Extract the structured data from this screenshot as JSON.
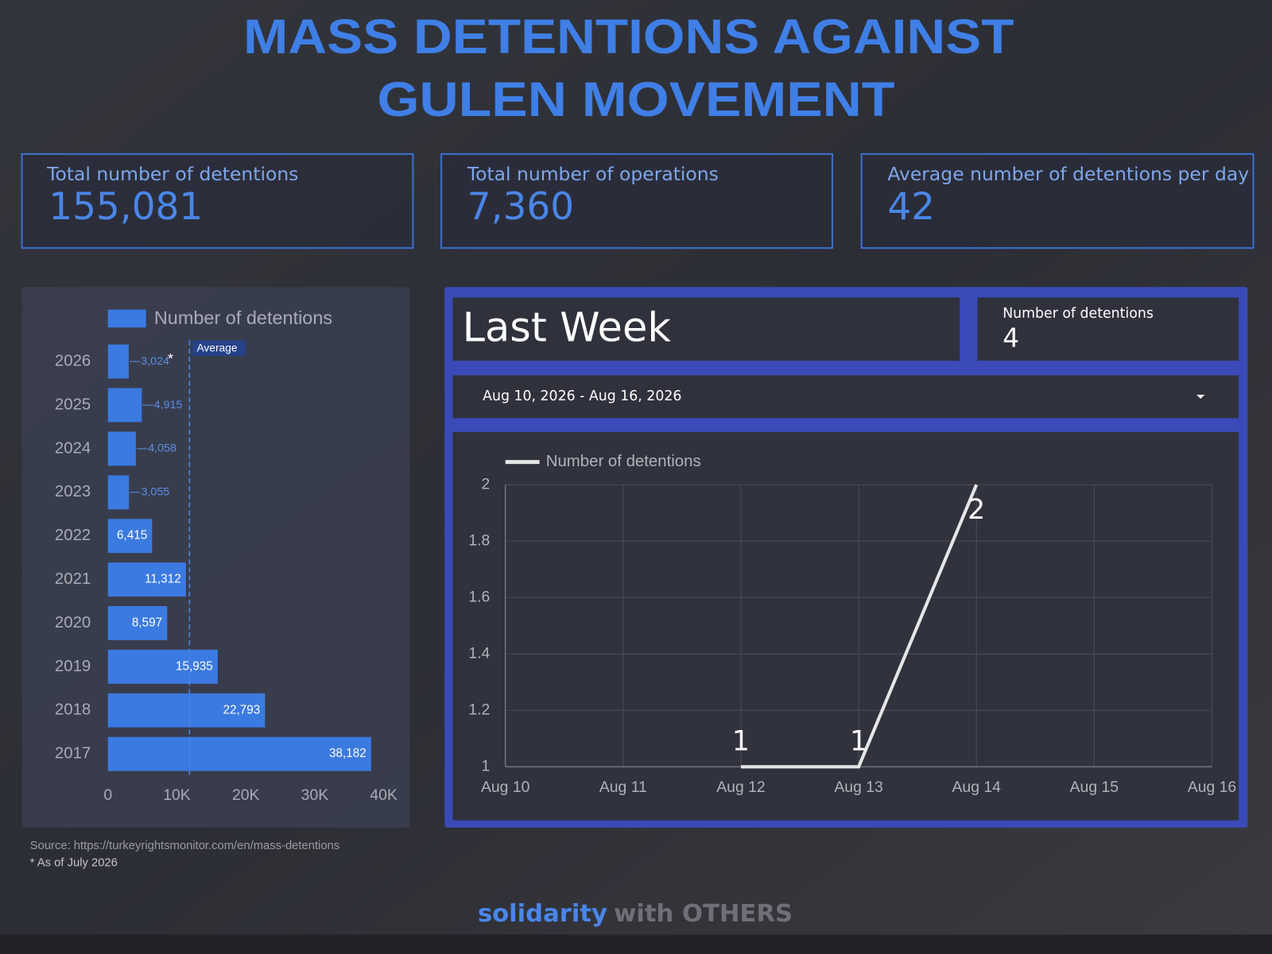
{
  "header": {
    "title": [
      "MASS DETENTIONS AGAINST",
      "GULEN MOVEMENT"
    ]
  },
  "kpis": [
    {
      "label": "Total number of detentions",
      "value": "155,081"
    },
    {
      "label": "Total number of operations",
      "value": "7,360"
    },
    {
      "label": "Average number of detentions per day",
      "value": "42"
    }
  ],
  "chart_data": [
    {
      "type": "bar",
      "orientation": "horizontal",
      "categories": [
        "2026",
        "2025",
        "2024",
        "2023",
        "2022",
        "2021",
        "2020",
        "2019",
        "2018",
        "2017"
      ],
      "series": [
        {
          "name": "Number of detentions",
          "color": "#3b7ae0",
          "values": [
            3024,
            4915,
            4058,
            3055,
            6415,
            11312,
            8597,
            15935,
            22793,
            38182
          ],
          "value_labels": [
            "3,024",
            "4,915",
            "4,058",
            "3,055",
            "6,415",
            "11,312",
            "8,597",
            "15,935",
            "22,793",
            "38,182"
          ]
        }
      ],
      "xlim": [
        0,
        40000
      ],
      "xticks": [
        0,
        {
          "value": 10000,
          "label": "10K"
        },
        {
          "value": 20000,
          "label": "20K"
        },
        {
          "value": 30000,
          "label": "30K"
        },
        {
          "value": 40000,
          "label": "40K"
        }
      ],
      "average": {
        "value": 11829,
        "label": "Average"
      },
      "annotation": "*"
    },
    {
      "type": "line",
      "categories": [
        "Aug 10",
        "Aug 11",
        "Aug 12",
        "Aug 13",
        "Aug 14",
        "Aug 15",
        "Aug 16"
      ],
      "series": [
        {
          "name": "Number of detentions",
          "color": "#e6e6e6",
          "values": [
            null,
            null,
            1,
            1,
            2,
            null,
            null
          ]
        }
      ],
      "ylim": [
        1,
        2
      ],
      "yticks": [
        1,
        1.2,
        1.4,
        1.6,
        1.8,
        2
      ],
      "grid": true
    }
  ],
  "last_week": {
    "title": "Last Week",
    "scorecard_label": "Number of detentions",
    "scorecard_value": 4,
    "date_range": "Aug 10, 2026 - Aug 16, 2026"
  },
  "notes": {
    "source": "Source: https://turkeyrightsmonitor.com/en/mass-detentions",
    "footnote": "* As of July 2026"
  },
  "footer": {
    "brand": "solidarity",
    "tagline": "with OTHERS"
  }
}
